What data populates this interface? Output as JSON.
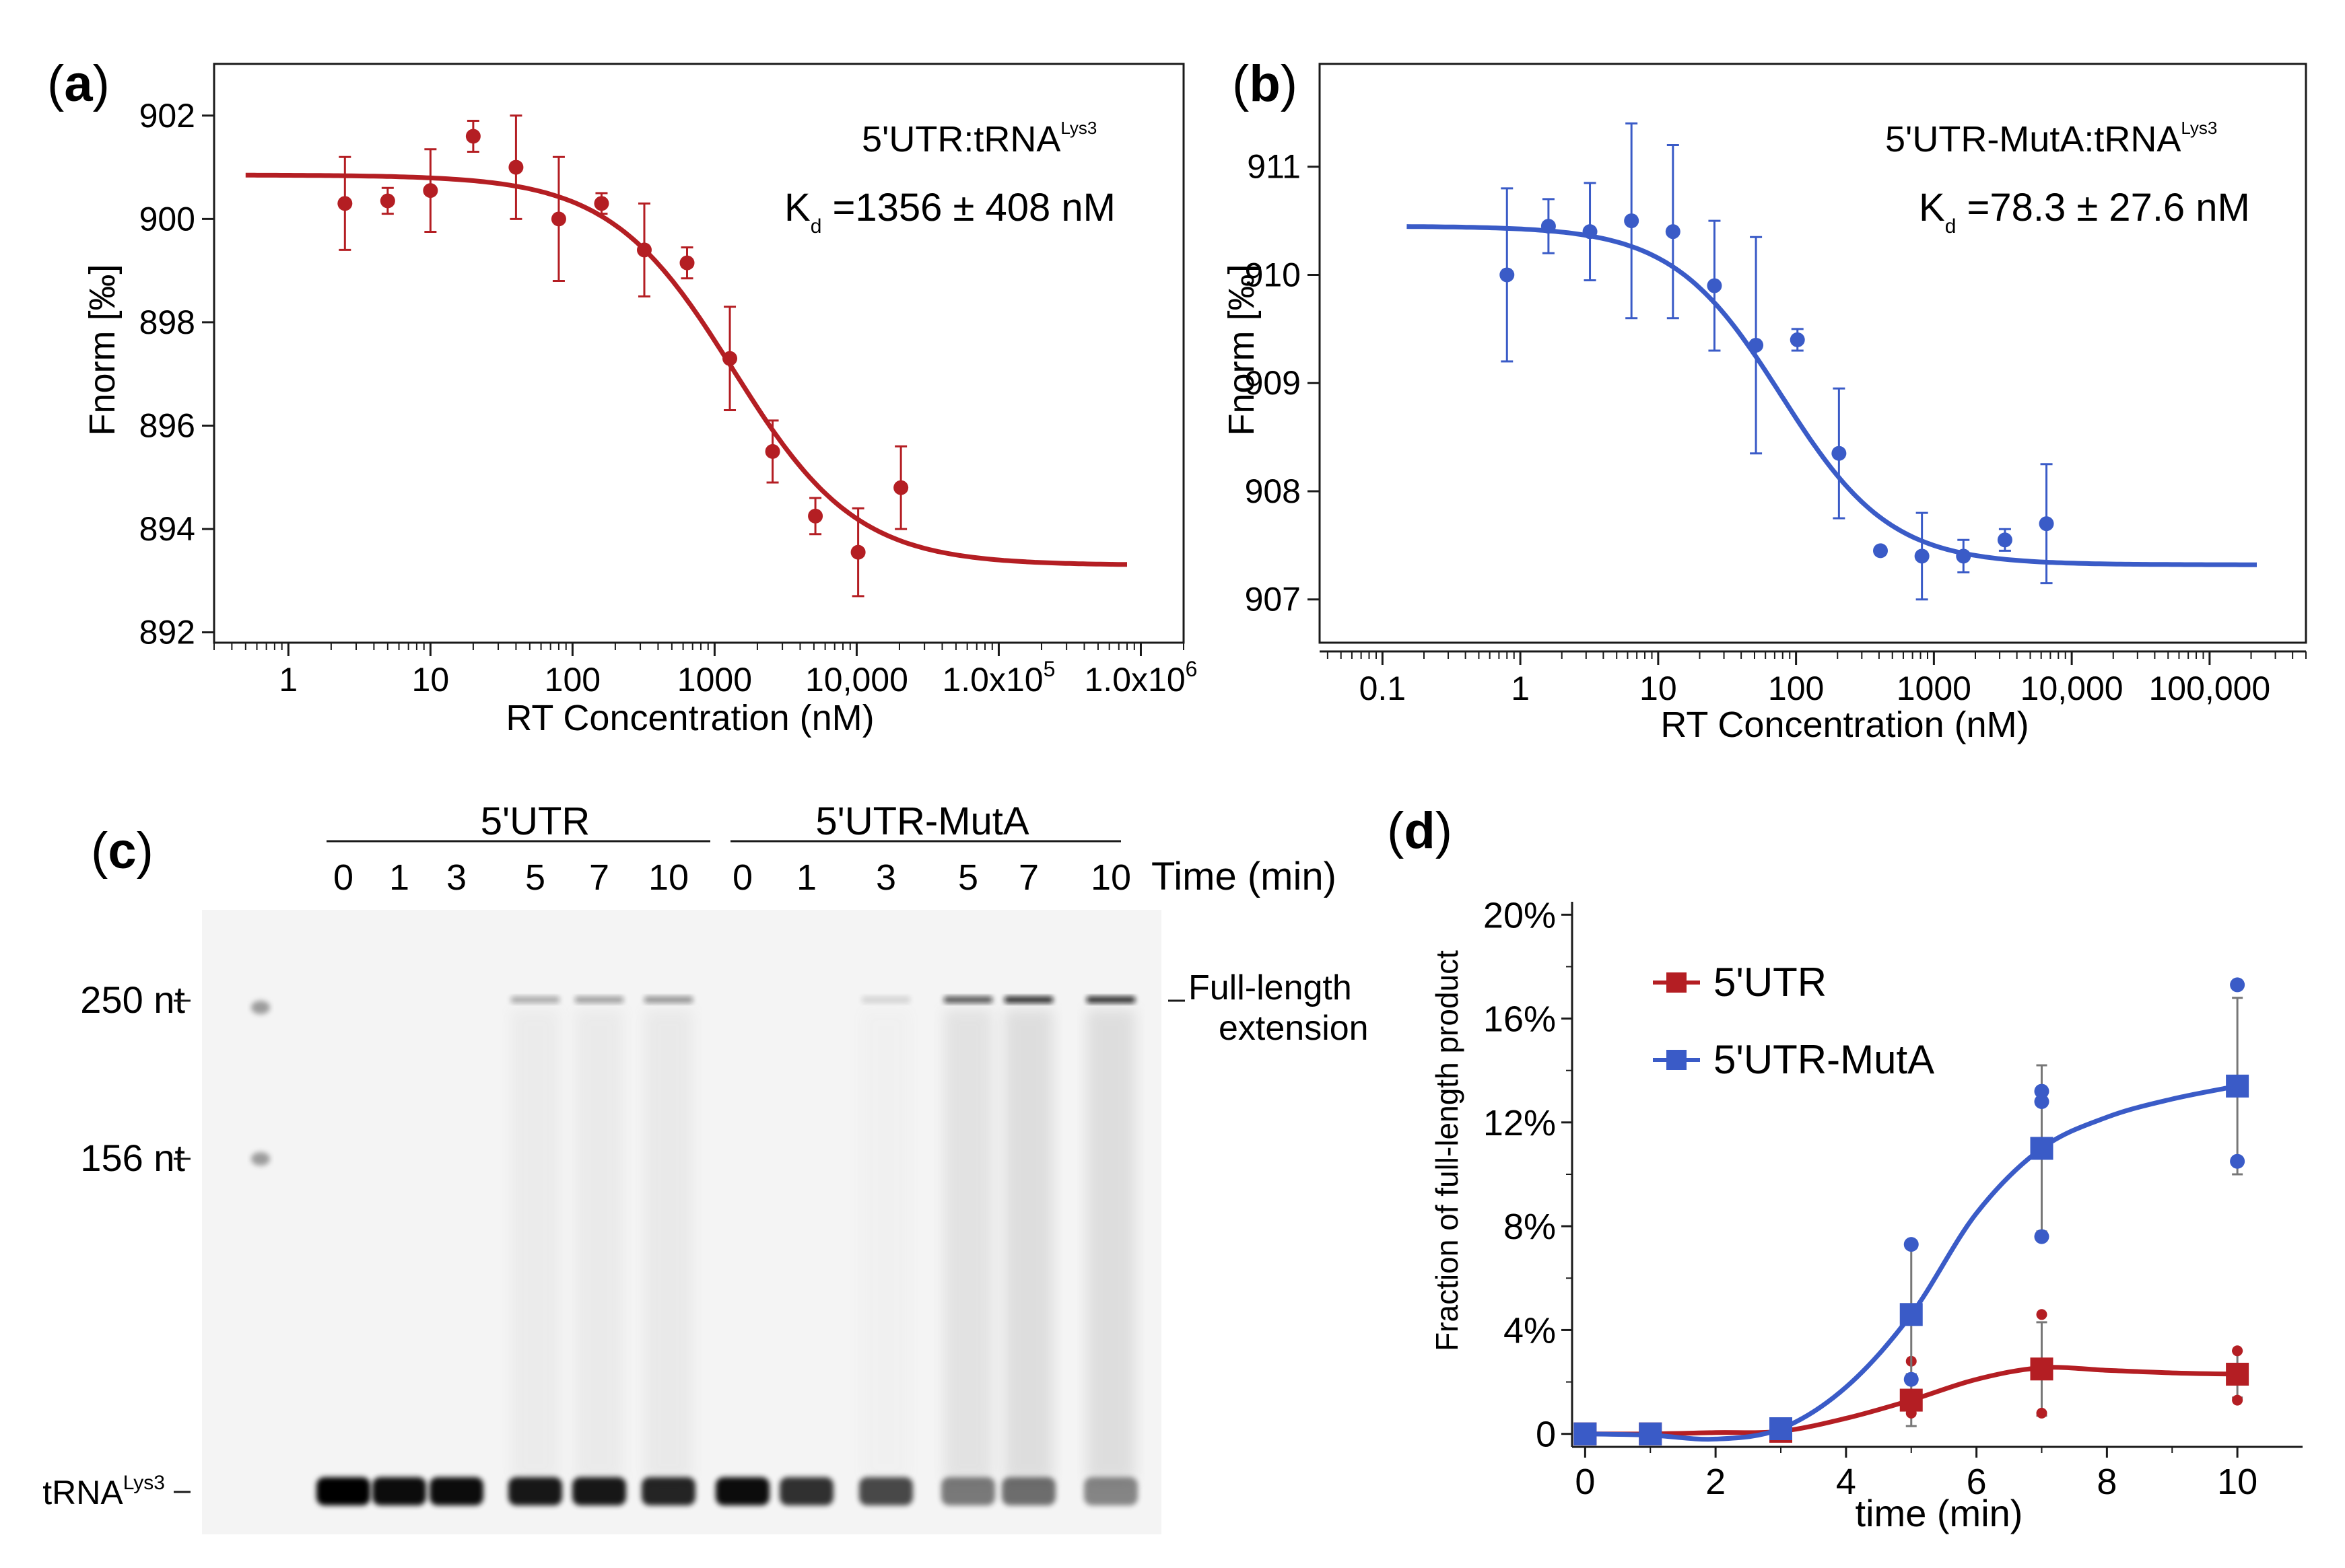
{
  "colors": {
    "red": "#b41e23",
    "blue": "#3a5bc7",
    "axis": "#1a1a1a",
    "gray": "#888888"
  },
  "chart_data": [
    {
      "panel": "a",
      "type": "scatter",
      "panel_label": "a",
      "annotation_title": "5'UTR:tRNA",
      "annotation_sup": "Lys3",
      "kd_symbol": "K",
      "kd_sub": "d",
      "kd_text": " =1356  ± 408 nM",
      "xlabel": "RT Concentration (nM)",
      "ylabel": "Fnorm [‰]",
      "xscale": "log",
      "xlim": [
        0.3,
        2000000
      ],
      "ylim": [
        891.8,
        903.0
      ],
      "x_tick_labels": [
        "1",
        "10",
        "100",
        "1000",
        "10,000",
        "1.0x10",
        "1.0x10"
      ],
      "x_tick_sup": [
        "",
        "",
        "",
        "",
        "",
        "5",
        "6"
      ],
      "x_tick_values": [
        1,
        10,
        100,
        1000,
        10000,
        100000,
        1000000
      ],
      "y_tick_labels": [
        "892",
        "894",
        "896",
        "898",
        "900",
        "902"
      ],
      "y_tick_values": [
        892,
        894,
        896,
        898,
        900,
        902
      ],
      "color": "#b41e23",
      "points": [
        {
          "x": 2.5,
          "y": 900.3,
          "err": 0.9
        },
        {
          "x": 5,
          "y": 900.35,
          "err": 0.25
        },
        {
          "x": 10,
          "y": 900.55,
          "err": 0.8
        },
        {
          "x": 20,
          "y": 901.6,
          "err": 0.3
        },
        {
          "x": 40,
          "y": 901.0,
          "err": 1.0
        },
        {
          "x": 80,
          "y": 900.0,
          "err": 1.2
        },
        {
          "x": 160,
          "y": 900.3,
          "err": 0.2
        },
        {
          "x": 320,
          "y": 899.4,
          "err": 0.9
        },
        {
          "x": 640,
          "y": 899.15,
          "err": 0.3
        },
        {
          "x": 1280,
          "y": 897.3,
          "err": 1.0
        },
        {
          "x": 2560,
          "y": 895.5,
          "err": 0.6
        },
        {
          "x": 5120,
          "y": 894.25,
          "err": 0.35
        },
        {
          "x": 10240,
          "y": 893.55,
          "err": 0.85
        },
        {
          "x": 20480,
          "y": 894.8,
          "err": 0.8
        }
      ],
      "fit": {
        "model": "hill",
        "top": 900.85,
        "bottom": 893.3,
        "ec50": 1356,
        "hill": 1.0,
        "xmin": 0.5,
        "xmax": 800000
      }
    },
    {
      "panel": "b",
      "type": "scatter",
      "panel_label": "b",
      "annotation_title": "5'UTR-MutA:tRNA",
      "annotation_sup": "Lys3",
      "kd_symbol": "K",
      "kd_sub": "d",
      "kd_text": " =78.3 ± 27.6 nM",
      "xlabel": "RT Concentration (nM)",
      "ylabel": "Fnorm [‰]",
      "xscale": "log",
      "xlim": [
        0.035,
        500000
      ],
      "ylim": [
        906.6,
        911.95
      ],
      "x_tick_labels": [
        "0.1",
        "1",
        "10",
        "100",
        "1000",
        "10,000",
        "100,000"
      ],
      "x_tick_values": [
        0.1,
        1,
        10,
        100,
        1000,
        10000,
        100000
      ],
      "y_tick_labels": [
        "907",
        "908",
        "909",
        "910",
        "911"
      ],
      "y_tick_values": [
        907,
        908,
        909,
        910,
        911
      ],
      "color": "#3a5bc7",
      "points": [
        {
          "x": 0.8,
          "y": 910.0,
          "err": 0.8
        },
        {
          "x": 1.6,
          "y": 910.45,
          "err": 0.25
        },
        {
          "x": 3.2,
          "y": 910.4,
          "err": 0.45
        },
        {
          "x": 6.4,
          "y": 910.5,
          "err": 0.9
        },
        {
          "x": 12.8,
          "y": 910.4,
          "err": 0.8
        },
        {
          "x": 25.6,
          "y": 909.9,
          "err": 0.6
        },
        {
          "x": 51.2,
          "y": 909.35,
          "err": 1.0
        },
        {
          "x": 102.4,
          "y": 909.4,
          "err": 0.1
        },
        {
          "x": 204.8,
          "y": 908.35,
          "err": 0.6
        },
        {
          "x": 409.6,
          "y": 907.45,
          "err": 0.0
        },
        {
          "x": 819.2,
          "y": 907.4,
          "err": 0.4
        },
        {
          "x": 1638.4,
          "y": 907.4,
          "err": 0.15
        },
        {
          "x": 3276.8,
          "y": 907.55,
          "err": 0.1
        },
        {
          "x": 6553.6,
          "y": 907.7,
          "err": 0.55
        }
      ],
      "fit": {
        "model": "hill",
        "top": 910.45,
        "bottom": 907.32,
        "ec50": 78.3,
        "hill": 1.1,
        "xmin": 0.15,
        "xmax": 220000
      }
    },
    {
      "panel": "d",
      "type": "line",
      "panel_label": "d",
      "xlabel": "time (min)",
      "ylabel": "Fraction of full-length product",
      "xlim": [
        -0.2,
        11.0
      ],
      "ylim": [
        -0.5,
        20.5
      ],
      "x_tick_labels": [
        "0",
        "2",
        "4",
        "6",
        "8",
        "10"
      ],
      "x_tick_values": [
        0,
        2,
        4,
        6,
        8,
        10
      ],
      "y_tick_labels": [
        "0",
        "4%",
        "8%",
        "12%",
        "16%",
        "20%"
      ],
      "y_tick_values": [
        0,
        4,
        8,
        12,
        16,
        20
      ],
      "series": [
        {
          "name": "5'UTR",
          "color": "#b41e23",
          "x": [
            0,
            1,
            3,
            5,
            7,
            10
          ],
          "values": [
            0.0,
            0.0,
            0.1,
            1.3,
            2.5,
            2.3
          ],
          "err": [
            0.0,
            0.0,
            0.0,
            1.0,
            1.8,
            0.9
          ],
          "replicates": [
            [],
            [],
            [],
            [
              0.8,
              2.8
            ],
            [
              0.8,
              4.6
            ],
            [
              1.3,
              2.5,
              3.2
            ]
          ],
          "curve": [
            [
              0,
              0
            ],
            [
              1,
              0
            ],
            [
              2,
              0.05
            ],
            [
              3,
              0.1
            ],
            [
              4,
              0.6
            ],
            [
              5,
              1.3
            ],
            [
              6,
              2.1
            ],
            [
              7,
              2.55
            ],
            [
              8,
              2.45
            ],
            [
              9,
              2.35
            ],
            [
              10,
              2.3
            ]
          ]
        },
        {
          "name": "5'UTR-MutA",
          "color": "#3a5bc7",
          "x": [
            0,
            1,
            3,
            5,
            7,
            10
          ],
          "values": [
            0.0,
            0.0,
            0.2,
            4.6,
            11.0,
            13.4
          ],
          "err": [
            0.0,
            0.0,
            0.0,
            2.6,
            3.2,
            3.4
          ],
          "replicates": [
            [],
            [],
            [],
            [
              2.1,
              7.3
            ],
            [
              7.6,
              12.8,
              13.2
            ],
            [
              10.5,
              13.5,
              17.3
            ]
          ],
          "curve": [
            [
              0,
              0
            ],
            [
              1,
              -0.05
            ],
            [
              2,
              -0.2
            ],
            [
              3,
              0.2
            ],
            [
              4,
              1.8
            ],
            [
              5,
              4.6
            ],
            [
              6,
              8.5
            ],
            [
              7,
              11.0
            ],
            [
              8,
              12.2
            ],
            [
              9,
              12.9
            ],
            [
              10,
              13.4
            ]
          ]
        }
      ],
      "legend": [
        "5'UTR",
        "5'UTR-MutA"
      ]
    }
  ],
  "gel": {
    "panel_label": "c",
    "group_labels": [
      "5'UTR",
      "5'UTR-MutA"
    ],
    "lane_times": [
      "0",
      "1",
      "3",
      "5",
      "7",
      "10",
      "0",
      "1",
      "3",
      "5",
      "7",
      "10"
    ],
    "time_label": "Time (min)",
    "markers": [
      {
        "label": "250 nt",
        "sup": ""
      },
      {
        "label": "156 nt",
        "sup": ""
      },
      {
        "label": "tRNA",
        "sup": "Lys3"
      }
    ],
    "product_label_line1": "Full-length",
    "product_label_line2": "extension",
    "full_length_intensity": [
      0.0,
      0.0,
      0.05,
      0.35,
      0.4,
      0.45,
      0.0,
      0.0,
      0.15,
      0.75,
      0.95,
      0.95
    ],
    "trna_intensity": [
      1.0,
      0.95,
      0.95,
      0.9,
      0.9,
      0.85,
      0.95,
      0.8,
      0.7,
      0.5,
      0.55,
      0.45
    ]
  }
}
